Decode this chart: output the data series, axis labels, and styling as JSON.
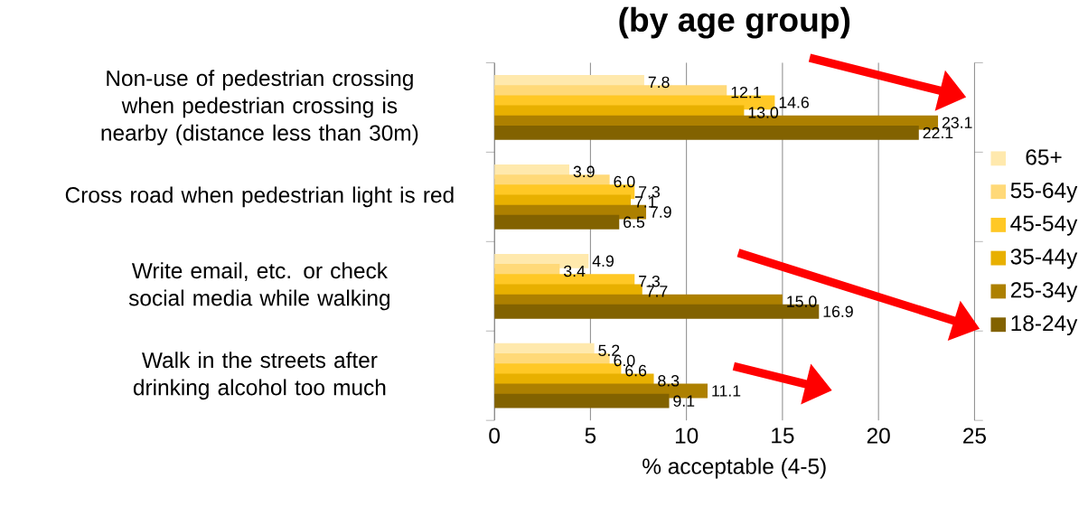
{
  "chart_data": {
    "type": "bar",
    "orientation": "horizontal",
    "title": "(by age group)",
    "xlabel": "% acceptable (4-5)",
    "categories": [
      "Non-use of pedestrian crossing when pedestrian crossing is nearby (distance less than 30m)",
      "Cross road when pedestrian light is red",
      "Write email, etc. or check social media while walking",
      "Walk in the streets after drinking alcohol too much"
    ],
    "series": [
      {
        "name": "65+",
        "color": "#ffe9ad",
        "values": [
          7.8,
          3.9,
          4.9,
          5.2
        ],
        "value_labels": [
          "7.8",
          "3.9",
          "4.9",
          "5.2"
        ]
      },
      {
        "name": "55-64y",
        "color": "#ffd978",
        "values": [
          12.1,
          6.0,
          3.4,
          6.0
        ],
        "value_labels": [
          "12.1",
          "6.0",
          "3.4",
          "6.0"
        ]
      },
      {
        "name": "45-54y",
        "color": "#ffc825",
        "values": [
          14.6,
          7.3,
          7.3,
          6.6
        ],
        "value_labels": [
          "14.6",
          "7.3",
          "7.3",
          "6.6"
        ]
      },
      {
        "name": "35-44y",
        "color": "#e8b000",
        "values": [
          13.0,
          7.1,
          7.7,
          8.3
        ],
        "value_labels": [
          "13.0",
          "7.1",
          "7.7",
          "8.3"
        ]
      },
      {
        "name": "25-34y",
        "color": "#ad8000",
        "values": [
          23.1,
          7.9,
          15.0,
          11.1
        ],
        "value_labels": [
          "23.1",
          "7.9",
          "15.0",
          "11.1"
        ]
      },
      {
        "name": "18-24y",
        "color": "#826200",
        "values": [
          22.1,
          6.5,
          16.9,
          9.1
        ],
        "value_labels": [
          "22.1",
          "6.5",
          "16.9",
          "9.1"
        ]
      }
    ],
    "xlim": [
      0,
      25
    ],
    "xticks": [
      0,
      5,
      10,
      15,
      20,
      25
    ],
    "grid": "x",
    "legend": "right"
  }
}
